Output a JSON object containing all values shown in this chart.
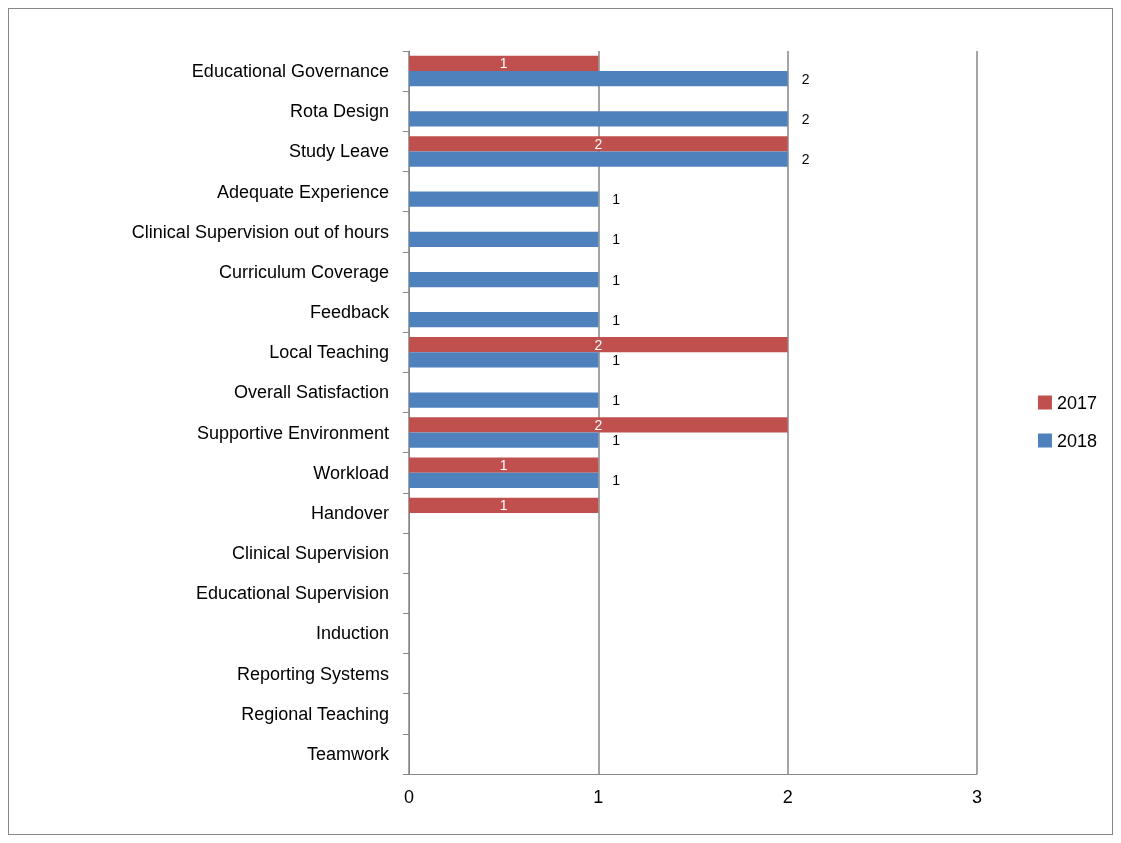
{
  "chart_data": {
    "type": "bar",
    "orientation": "horizontal",
    "categories": [
      "Educational Governance",
      "Rota Design",
      "Study Leave",
      "Adequate Experience",
      "Clinical Supervision out of hours",
      "Curriculum Coverage",
      "Feedback",
      "Local Teaching",
      "Overall Satisfaction",
      "Supportive Environment",
      "Workload",
      "Handover",
      "Clinical Supervision",
      "Educational Supervision",
      "Induction",
      "Reporting Systems",
      "Regional Teaching",
      "Teamwork"
    ],
    "series": [
      {
        "name": "2017",
        "color": "#c0504d",
        "values": [
          1,
          null,
          2,
          null,
          null,
          null,
          null,
          2,
          null,
          2,
          1,
          1,
          null,
          null,
          null,
          null,
          null,
          null
        ]
      },
      {
        "name": "2018",
        "color": "#4f81bd",
        "values": [
          2,
          2,
          2,
          1,
          1,
          1,
          1,
          1,
          1,
          1,
          1,
          null,
          null,
          null,
          null,
          null,
          null,
          null
        ]
      }
    ],
    "xlim": [
      0,
      3
    ],
    "xticks": [
      0,
      1,
      2,
      3
    ],
    "grid": "x",
    "legend": "right",
    "data_labels": true
  }
}
